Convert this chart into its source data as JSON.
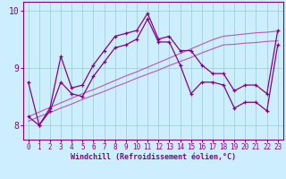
{
  "x": [
    0,
    1,
    2,
    3,
    4,
    5,
    6,
    7,
    8,
    9,
    10,
    11,
    12,
    13,
    14,
    15,
    16,
    17,
    18,
    19,
    20,
    21,
    22,
    23
  ],
  "line1": [
    8.75,
    8.0,
    8.3,
    9.2,
    8.65,
    8.7,
    9.05,
    9.3,
    9.55,
    9.6,
    9.65,
    9.95,
    9.5,
    9.55,
    9.3,
    9.3,
    9.05,
    8.9,
    8.9,
    8.6,
    8.7,
    8.7,
    8.55,
    9.65
  ],
  "line2": [
    8.15,
    8.0,
    8.25,
    8.75,
    8.55,
    8.5,
    8.85,
    9.1,
    9.35,
    9.4,
    9.5,
    9.85,
    9.45,
    9.45,
    9.05,
    8.55,
    8.75,
    8.75,
    8.7,
    8.3,
    8.4,
    8.4,
    8.25,
    9.4
  ],
  "reg1": [
    8.15,
    8.23,
    8.31,
    8.39,
    8.47,
    8.55,
    8.62,
    8.7,
    8.78,
    8.86,
    8.93,
    9.01,
    9.09,
    9.17,
    9.25,
    9.33,
    9.41,
    9.49,
    9.55,
    9.57,
    9.59,
    9.61,
    9.62,
    9.64
  ],
  "reg2": [
    8.07,
    8.15,
    8.22,
    8.3,
    8.37,
    8.45,
    8.52,
    8.59,
    8.67,
    8.74,
    8.82,
    8.89,
    8.96,
    9.04,
    9.11,
    9.18,
    9.26,
    9.33,
    9.4,
    9.41,
    9.43,
    9.44,
    9.46,
    9.47
  ],
  "color_lines": "#880088",
  "color_reg": "#bb55bb",
  "bg_color": "#cceeff",
  "grid_color": "#99cccc",
  "ylim": [
    7.75,
    10.15
  ],
  "yticks": [
    8,
    9,
    10
  ],
  "xlim": [
    -0.5,
    23.5
  ],
  "xlabel": "Windchill (Refroidissement éolien,°C)",
  "xlabel_fontsize": 6.0,
  "tick_fontsize": 5.5,
  "ytick_fontsize": 7.0
}
